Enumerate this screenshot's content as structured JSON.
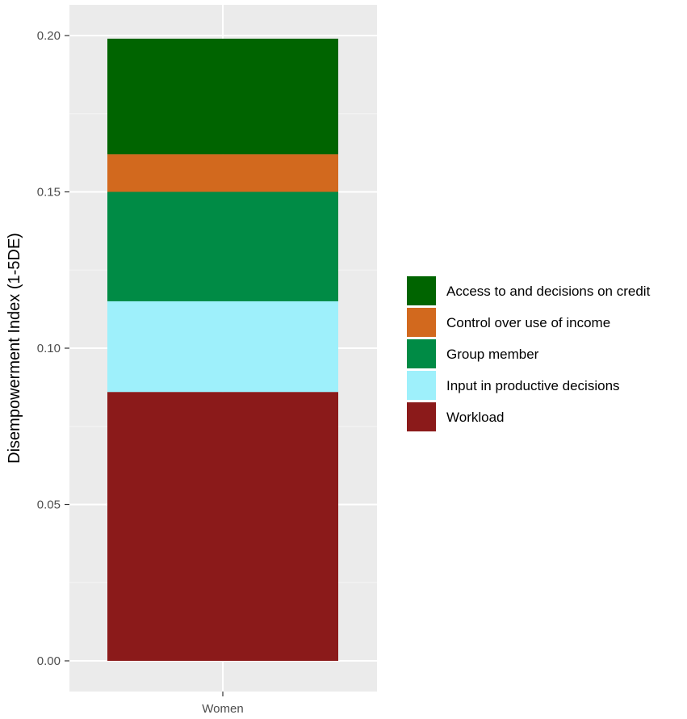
{
  "chart_data": {
    "type": "bar",
    "stacked": true,
    "categories": [
      "Women"
    ],
    "ylabel": "Disempowerment Index (1-5DE)",
    "xlabel": "",
    "ylim": [
      0,
      0.2
    ],
    "yticks": [
      0.0,
      0.05,
      0.1,
      0.15,
      0.2
    ],
    "ytick_labels": [
      "0.00",
      "0.05",
      "0.10",
      "0.15",
      "0.20"
    ],
    "grid": true,
    "legend_position": "right",
    "series": [
      {
        "name": "Workload",
        "color": "#8b1a1a",
        "values": [
          0.086
        ]
      },
      {
        "name": "Input in productive decisions",
        "color": "#9ef0fb",
        "values": [
          0.029
        ]
      },
      {
        "name": "Group member",
        "color": "#008b45",
        "values": [
          0.035
        ]
      },
      {
        "name": "Control over use of income",
        "color": "#d2691e",
        "values": [
          0.012
        ]
      },
      {
        "name": "Access to and decisions on credit",
        "color": "#006400",
        "values": [
          0.037
        ]
      }
    ],
    "legend_order": [
      "Access to and decisions on credit",
      "Control over use of income",
      "Group member",
      "Input in productive decisions",
      "Workload"
    ]
  }
}
